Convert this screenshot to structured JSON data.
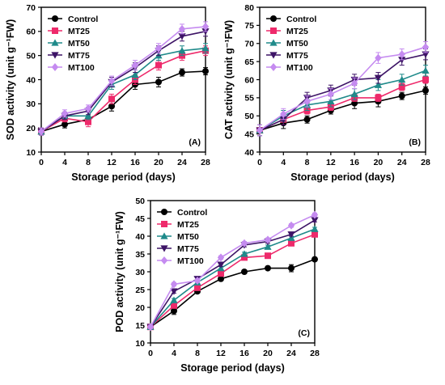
{
  "colors": {
    "Control": "#000000",
    "MT25": "#ee2a6b",
    "MT50": "#1f8a8a",
    "MT75": "#3d1466",
    "MT100": "#c58bf0"
  },
  "markers": {
    "Control": "circle",
    "MT25": "square",
    "MT50": "triangle-up",
    "MT75": "triangle-down",
    "MT100": "diamond"
  },
  "chart_data": [
    {
      "type": "line",
      "panel": "(A)",
      "xlabel": "Storage period (days)",
      "ylabel": "SOD activity (unit g⁻¹FW)",
      "x": [
        0,
        4,
        8,
        12,
        16,
        20,
        24,
        28
      ],
      "xlim": [
        0,
        28
      ],
      "ylim": [
        10,
        70
      ],
      "yticks": [
        10,
        20,
        30,
        40,
        50,
        60,
        70
      ],
      "legend_position": "top-left",
      "series": [
        {
          "name": "Control",
          "values": [
            18.5,
            21.5,
            23.5,
            29,
            38,
            39,
            43,
            43.5
          ],
          "errors": [
            1.5,
            1.5,
            1.5,
            2,
            2,
            2,
            1.5,
            1.5
          ]
        },
        {
          "name": "MT25",
          "values": [
            18.5,
            24,
            22.5,
            32,
            40,
            46,
            50,
            52
          ],
          "errors": [
            1.5,
            1.5,
            2,
            2,
            2,
            2,
            2,
            2
          ]
        },
        {
          "name": "MT50",
          "values": [
            18.5,
            25,
            25,
            38,
            42,
            50,
            52,
            53
          ],
          "errors": [
            1.5,
            1.5,
            1.5,
            2,
            2,
            2,
            2,
            2
          ]
        },
        {
          "name": "MT75",
          "values": [
            18.5,
            25,
            27,
            39,
            45,
            52,
            58,
            60
          ],
          "errors": [
            1.5,
            1.5,
            1.5,
            2,
            2,
            2,
            2,
            2
          ]
        },
        {
          "name": "MT100",
          "values": [
            18.5,
            26,
            28,
            39.5,
            46,
            53,
            61,
            62
          ],
          "errors": [
            1.5,
            1.5,
            1.5,
            2,
            2,
            2,
            2,
            2
          ]
        }
      ]
    },
    {
      "type": "line",
      "panel": "(B)",
      "xlabel": "Storage period (days)",
      "ylabel": "CAT activity (unit g⁻¹FW)",
      "x": [
        0,
        4,
        8,
        12,
        16,
        20,
        24,
        28
      ],
      "xlim": [
        0,
        28
      ],
      "ylim": [
        40,
        80
      ],
      "yticks": [
        40,
        45,
        50,
        55,
        60,
        65,
        70,
        75,
        80
      ],
      "legend_position": "top-left",
      "series": [
        {
          "name": "Control",
          "values": [
            46,
            48,
            49,
            51.5,
            53.5,
            54,
            55.5,
            57
          ],
          "errors": [
            1.5,
            1.5,
            1,
            1,
            1.5,
            1.5,
            1,
            1
          ]
        },
        {
          "name": "MT25",
          "values": [
            46,
            49,
            51.5,
            52.5,
            55,
            55,
            58,
            60
          ],
          "errors": [
            1.5,
            1.5,
            1,
            1,
            1,
            1,
            1,
            1
          ]
        },
        {
          "name": "MT50",
          "values": [
            46,
            50,
            53,
            54,
            56,
            58.5,
            60,
            62.5
          ],
          "errors": [
            1.5,
            1.5,
            1.5,
            1.5,
            1.5,
            1.5,
            1.5,
            1.5
          ]
        },
        {
          "name": "MT75",
          "values": [
            46,
            49,
            55,
            57,
            60,
            60.5,
            65.5,
            67
          ],
          "errors": [
            1.5,
            1.5,
            1.5,
            1.5,
            1.5,
            1.5,
            1.5,
            1.5
          ]
        },
        {
          "name": "MT100",
          "values": [
            46,
            50.5,
            54,
            56,
            59,
            66,
            67,
            69
          ],
          "errors": [
            1.5,
            1.5,
            1.5,
            1.5,
            1.5,
            1.5,
            1.5,
            1.5
          ]
        }
      ]
    },
    {
      "type": "line",
      "panel": "(C)",
      "xlabel": "Storage period (days)",
      "ylabel": "POD activity (unit g⁻¹FW)",
      "x": [
        0,
        4,
        8,
        12,
        16,
        20,
        24,
        28
      ],
      "xlim": [
        0,
        28
      ],
      "ylim": [
        10,
        50
      ],
      "yticks": [
        10,
        15,
        20,
        25,
        30,
        35,
        40,
        45,
        50
      ],
      "legend_position": "top-left",
      "series": [
        {
          "name": "Control",
          "values": [
            14.5,
            19,
            24.5,
            28,
            30,
            31,
            31,
            33.5
          ],
          "errors": [
            0.5,
            1,
            0.5,
            0.5,
            0.5,
            0.5,
            1,
            0.5
          ]
        },
        {
          "name": "MT25",
          "values": [
            14.5,
            20.5,
            25.5,
            29.5,
            34,
            34.5,
            38,
            40.5
          ],
          "errors": [
            0.5,
            0.5,
            0.5,
            0.5,
            0.5,
            0.5,
            0.5,
            0.5
          ]
        },
        {
          "name": "MT50",
          "values": [
            14.5,
            22,
            27,
            31,
            35,
            37,
            39.5,
            42
          ],
          "errors": [
            0.5,
            0.5,
            0.5,
            0.5,
            0.5,
            0.5,
            0.5,
            0.5
          ]
        },
        {
          "name": "MT75",
          "values": [
            14.5,
            24.5,
            28,
            32,
            37.5,
            38.5,
            40.5,
            44.5
          ],
          "errors": [
            0.5,
            0.5,
            0.5,
            0.5,
            0.5,
            0.5,
            0.5,
            0.5
          ]
        },
        {
          "name": "MT100",
          "values": [
            14.5,
            26.5,
            27.5,
            34,
            38,
            39,
            43,
            46
          ],
          "errors": [
            0.5,
            0.5,
            0.5,
            0.5,
            0.5,
            0.5,
            0.5,
            0.5
          ]
        }
      ]
    }
  ]
}
